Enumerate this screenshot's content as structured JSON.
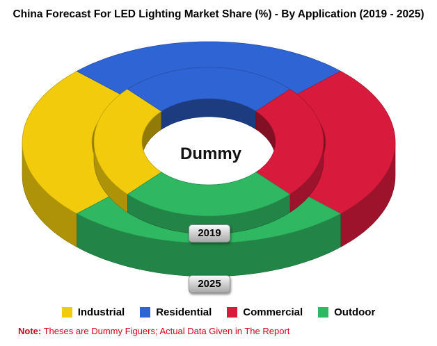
{
  "title": "China Forecast For LED Lighting Market Share (%) - By Application (2019 - 2025)",
  "center_label": "Dummy",
  "note": {
    "prefix": "Note:",
    "text": " Theses are Dummy Figuers; Actual Data Given in The Report"
  },
  "chart_data": {
    "type": "pie",
    "subtype": "concentric-3d-doughnut",
    "title": "China Forecast For LED Lighting Market Share (%) - By Application (2019 - 2025)",
    "categories": [
      "Industrial",
      "Residential",
      "Commercial",
      "Outdoor"
    ],
    "colors": {
      "Industrial": "#f2cc0c",
      "Residential": "#2f64d4",
      "Commercial": "#d81a3c",
      "Outdoor": "#2fb761"
    },
    "series": [
      {
        "name": "2019",
        "ring": "inner",
        "values": [
          25,
          25,
          25,
          25
        ]
      },
      {
        "name": "2025",
        "ring": "outer",
        "values": [
          25,
          25,
          25,
          25
        ]
      }
    ],
    "legend_position": "bottom"
  },
  "legend": [
    {
      "label": "Industrial",
      "color": "#f2cc0c"
    },
    {
      "label": "Residential",
      "color": "#2f64d4"
    },
    {
      "label": "Commercial",
      "color": "#d81a3c"
    },
    {
      "label": "Outdoor",
      "color": "#2fb761"
    }
  ]
}
